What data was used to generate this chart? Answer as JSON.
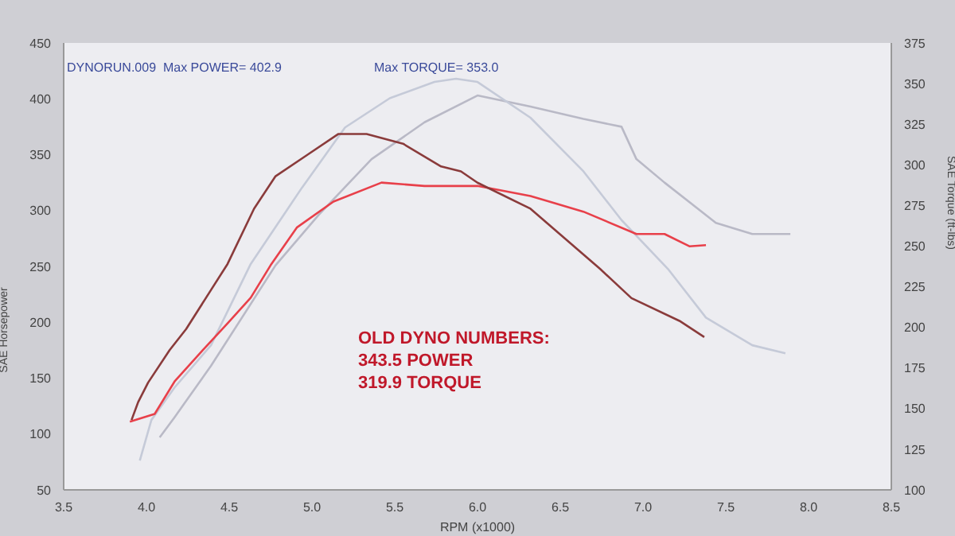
{
  "chart_data": {
    "type": "line",
    "xlabel": "RPM (x1000)",
    "ylabel": "SAE Horsepower",
    "y2label": "SAE Torque (ft-lbs)",
    "annotations": [
      "DYNORUN.009  Max POWER= 402.9",
      "Max TORQUE= 353.0",
      "OLD DYNO NUMBERS:",
      "343.5 POWER",
      "319.9 TORQUE"
    ],
    "xlim": [
      3.5,
      8.5
    ],
    "xticks": [
      3.5,
      {
        "value": 4,
        "label": "4.0"
      },
      4.5,
      {
        "value": 5,
        "label": "5.0"
      },
      5.5,
      {
        "value": 6,
        "label": "6.0"
      },
      6.5,
      {
        "value": 7,
        "label": "7.0"
      },
      7.5,
      {
        "value": 8,
        "label": "8.0"
      },
      8.5
    ],
    "ylim": [
      50,
      450
    ],
    "yticks": [
      50,
      100,
      150,
      200,
      250,
      300,
      350,
      400,
      450
    ],
    "y2lim": [
      100,
      375
    ],
    "y2ticks": [
      100,
      125,
      150,
      175,
      200,
      225,
      250,
      275,
      300,
      325,
      350,
      375
    ],
    "grid": false,
    "legend": false,
    "marker": "none",
    "line_style": "solid",
    "series": [
      {
        "color": "#b9b9c6",
        "x": [
          4.08,
          4.17,
          4.39,
          4.78,
          5.04,
          5.36,
          5.68,
          6.0,
          6.32,
          6.64,
          6.87,
          6.96,
          7.13,
          7.44,
          7.66,
          7.89
        ],
        "values": [
          97,
          115,
          161,
          251,
          296,
          346,
          379,
          403,
          393,
          382,
          375,
          346,
          325,
          289,
          279,
          279
        ]
      },
      {
        "color": "#c5cad8",
        "axis": "y2",
        "x": [
          3.96,
          4.03,
          4.17,
          4.39,
          4.63,
          4.94,
          5.2,
          5.47,
          5.74,
          5.87,
          6.0,
          6.32,
          6.64,
          6.87,
          7.15,
          7.38,
          7.66,
          7.86
        ],
        "values": [
          118,
          143,
          163,
          189,
          239,
          286,
          323,
          341,
          351,
          353,
          351,
          329,
          296,
          266,
          236,
          206,
          189,
          184
        ]
      },
      {
        "color": "#e8404a",
        "x": [
          3.9,
          4.05,
          4.17,
          4.34,
          4.49,
          4.63,
          4.75,
          4.91,
          5.13,
          5.42,
          5.68,
          6.0,
          6.32,
          6.64,
          6.96,
          7.13,
          7.28,
          7.38
        ],
        "values": [
          111,
          118,
          147,
          175,
          199,
          222,
          251,
          285,
          308,
          325,
          322,
          322,
          313,
          299,
          279,
          279,
          268,
          269
        ]
      },
      {
        "color": "#8a3b3b",
        "axis": "y2",
        "x": [
          3.91,
          3.95,
          4.01,
          4.14,
          4.24,
          4.39,
          4.49,
          4.65,
          4.78,
          4.97,
          5.16,
          5.33,
          5.55,
          5.78,
          5.9,
          6.0,
          6.32,
          6.74,
          6.93,
          7.22,
          7.37
        ],
        "values": [
          143,
          154,
          166,
          186,
          199,
          223,
          239,
          273,
          293,
          306,
          319,
          319,
          313,
          299,
          296,
          289,
          273,
          236,
          218,
          204,
          194
        ]
      }
    ]
  }
}
